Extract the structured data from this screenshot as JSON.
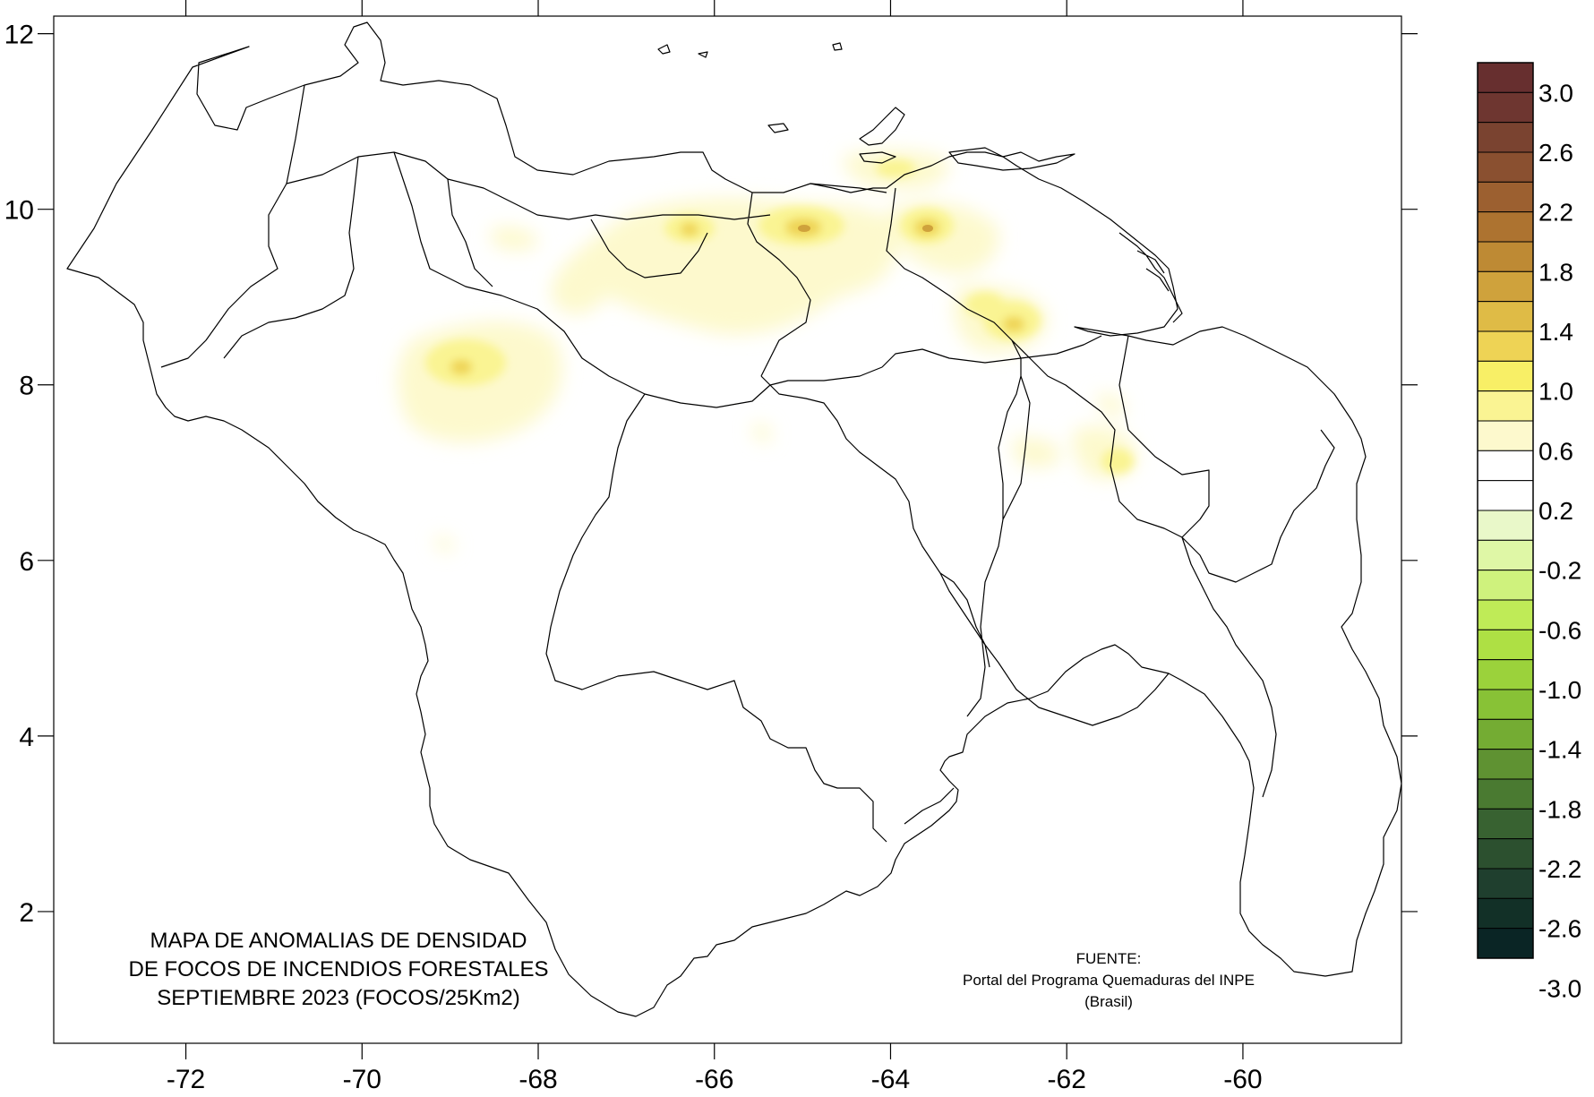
{
  "title_lines": [
    "MAPA DE ANOMALIAS DE DENSIDAD",
    "DE FOCOS DE INCENDIOS FORESTALES",
    "SEPTIEMBRE 2023 (FOCOS/25Km2)"
  ],
  "source_lines": [
    "FUENTE:",
    "Portal del Programa Quemaduras del INPE",
    "(Brasil)"
  ],
  "x_ticks": [
    "-72",
    "-70",
    "-68",
    "-66",
    "-64",
    "-62",
    "-60"
  ],
  "y_ticks": [
    "12",
    "10",
    "8",
    "6",
    "4",
    "2"
  ],
  "colorbar": {
    "labels": [
      "3.0",
      "2.6",
      "2.2",
      "1.8",
      "1.4",
      "1.0",
      "0.6",
      "0.2",
      "-0.2",
      "-0.6",
      "-1.0",
      "-1.4",
      "-1.8",
      "-2.2",
      "-2.6",
      "-3.0"
    ],
    "colors": [
      "#672f2f",
      "#6e3630",
      "#7a4330",
      "#8a5030",
      "#9c6030",
      "#ad7330",
      "#be8a34",
      "#cfa23c",
      "#dfbb46",
      "#eed355",
      "#f8ef66",
      "#faf493",
      "#fdf9cd",
      "#ffffff",
      "#ffffff",
      "#e9f8c9",
      "#dff7a6",
      "#cff27d",
      "#bfeb57",
      "#aee044",
      "#9bd23b",
      "#88c236",
      "#74ac33",
      "#5f9232",
      "#4a7a31",
      "#386231",
      "#2c502f",
      "#1f3f2e",
      "#123027",
      "#0a2525"
    ]
  },
  "chart_data": {
    "type": "heatmap",
    "title": "MAPA DE ANOMALIAS DE DENSIDAD DE FOCOS DE INCENDIOS FORESTALES SEPTIEMBRE 2023 (FOCOS/25Km2)",
    "xlim": [
      -73.5,
      -58.2
    ],
    "ylim": [
      0.5,
      12.2
    ],
    "x_ticks": [
      -72,
      -70,
      -68,
      -66,
      -64,
      -62,
      -60
    ],
    "y_ticks": [
      12,
      10,
      8,
      6,
      4,
      2
    ],
    "value_range": [
      -3.0,
      3.0
    ],
    "hotspots": [
      {
        "lon": -65.0,
        "lat": 9.75,
        "value": 1.4
      },
      {
        "lon": -63.6,
        "lat": 9.8,
        "value": 1.4
      },
      {
        "lon": -66.3,
        "lat": 9.8,
        "value": 1.0
      },
      {
        "lon": -62.6,
        "lat": 8.65,
        "value": 1.2
      },
      {
        "lon": -63.0,
        "lat": 8.9,
        "value": 1.0
      },
      {
        "lon": -68.9,
        "lat": 8.15,
        "value": 1.0
      },
      {
        "lon": -61.5,
        "lat": 7.1,
        "value": 0.6
      },
      {
        "lon": -62.3,
        "lat": 7.3,
        "value": 0.4
      },
      {
        "lon": -66.0,
        "lat": 9.0,
        "value": 0.4
      },
      {
        "lon": -64.8,
        "lat": 8.8,
        "value": 0.4
      },
      {
        "lon": -67.0,
        "lat": 8.9,
        "value": 0.3
      },
      {
        "lon": -62.8,
        "lat": 10.3,
        "value": 0.6
      },
      {
        "lon": -63.5,
        "lat": 10.55,
        "value": 0.5
      },
      {
        "lon": -68.3,
        "lat": 9.7,
        "value": 0.4
      },
      {
        "lon": -69.0,
        "lat": 7.6,
        "value": 0.4
      },
      {
        "lon": -61.4,
        "lat": 7.8,
        "value": 0.3
      },
      {
        "lon": -69.2,
        "lat": 6.2,
        "value": 0.3
      },
      {
        "lon": -65.5,
        "lat": 7.4,
        "value": 0.2
      },
      {
        "lon": -71.6,
        "lat": 9.6,
        "value": 0.2
      },
      {
        "lon": -70.2,
        "lat": 9.8,
        "value": 0.2
      }
    ]
  }
}
